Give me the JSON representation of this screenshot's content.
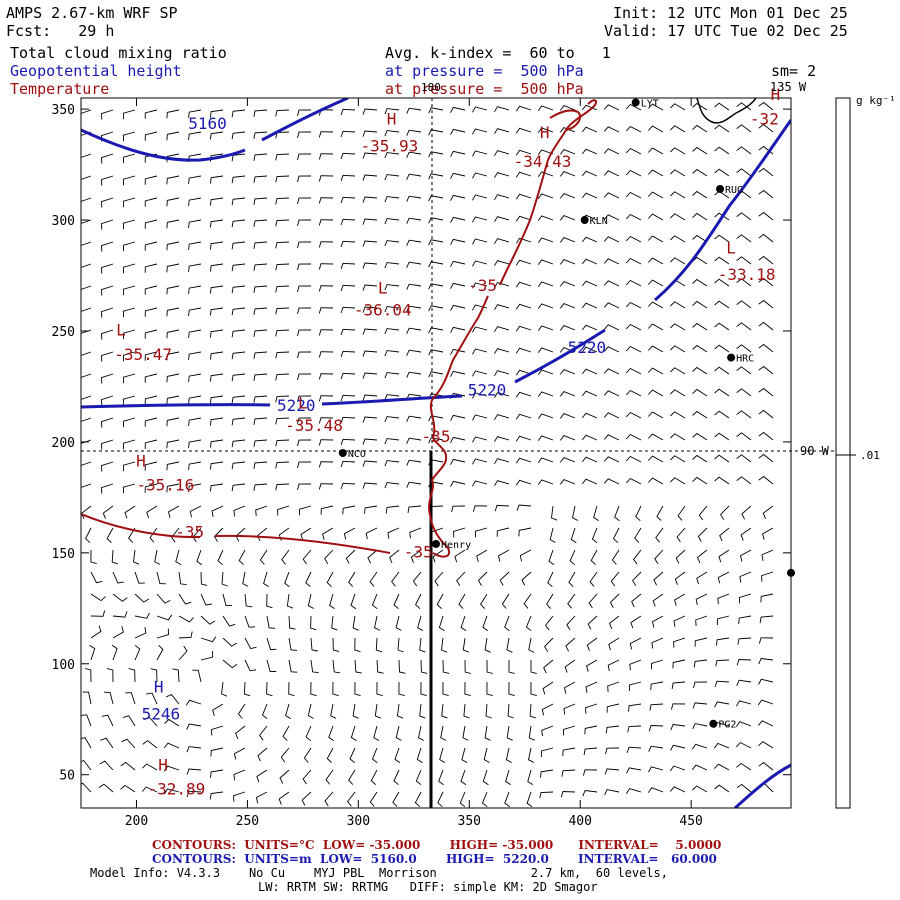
{
  "header": {
    "model_title": "AMPS 2.67-km WRF SP",
    "forecast": "Fcst:   29 h",
    "init": "Init: 12 UTC Mon 01 Dec 25",
    "valid": "Valid: 17 UTC Tue 02 Dec 25",
    "field_cloud": "Total cloud mixing ratio",
    "field_height": "Geopotential height",
    "field_temp": "Temperature",
    "avg_k": "Avg. k-index =  60 to   1",
    "pressure_height": "at pressure =  500 hPa",
    "pressure_temp": "at pressure =  500 hPa",
    "smoothing": "sm= 2",
    "lon_top": "135 W",
    "lon_top_short": "180",
    "lon_right": "90 W"
  },
  "colorbar": {
    "units": "g kg⁻¹",
    "value": ".01"
  },
  "axes": {
    "x_ticks": [
      "200",
      "250",
      "300",
      "350",
      "400",
      "450"
    ],
    "y_ticks": [
      "350",
      "300",
      "250",
      "200",
      "150",
      "100",
      "50"
    ],
    "x_range": [
      175,
      495
    ],
    "y_range": [
      35,
      355
    ]
  },
  "stations": [
    {
      "name": "LYT",
      "x": 425,
      "y": 353
    },
    {
      "name": "RUG",
      "x": 463,
      "y": 314
    },
    {
      "name": "KLN",
      "x": 402,
      "y": 300
    },
    {
      "name": "HRC",
      "x": 468,
      "y": 238
    },
    {
      "name": "NCO",
      "x": 293,
      "y": 195
    },
    {
      "name": "Henry",
      "x": 335,
      "y": 154
    },
    {
      "name": "PG2",
      "x": 460,
      "y": 73
    },
    {
      "name": "",
      "x": 495,
      "y": 141
    }
  ],
  "labels_height": [
    {
      "text": "5160",
      "x": 232,
      "y": 341
    },
    {
      "text": "5220",
      "x": 403,
      "y": 240
    },
    {
      "text": "5220",
      "x": 358,
      "y": 221
    },
    {
      "text": "5220",
      "x": 272,
      "y": 214
    },
    {
      "text": "5246",
      "x": 211,
      "y": 75
    }
  ],
  "labels_temp": [
    {
      "text": "-35.93",
      "x": 314,
      "y": 331
    },
    {
      "text": "-34.43",
      "x": 383,
      "y": 324
    },
    {
      "text": "-33.18",
      "x": 475,
      "y": 273
    },
    {
      "text": "-35",
      "x": 356,
      "y": 268
    },
    {
      "text": "-36.04",
      "x": 311,
      "y": 257
    },
    {
      "text": "-35.47",
      "x": 203,
      "y": 237
    },
    {
      "text": "-35.48",
      "x": 280,
      "y": 205
    },
    {
      "text": "-35",
      "x": 335,
      "y": 200
    },
    {
      "text": "-35.16",
      "x": 213,
      "y": 178
    },
    {
      "text": "-35",
      "x": 224,
      "y": 157
    },
    {
      "text": "-35",
      "x": 327,
      "y": 148
    },
    {
      "text": "-32.89",
      "x": 218,
      "y": 41
    },
    {
      "text": "-32",
      "x": 483,
      "y": 343
    }
  ],
  "extrema": [
    {
      "text": "H",
      "type": "temp",
      "x": 315,
      "y": 343
    },
    {
      "text": "H",
      "type": "temp",
      "x": 384,
      "y": 337
    },
    {
      "text": "L",
      "type": "temp",
      "x": 468,
      "y": 285
    },
    {
      "text": "L",
      "type": "temp",
      "x": 311,
      "y": 267
    },
    {
      "text": "L",
      "type": "temp",
      "x": 193,
      "y": 248
    },
    {
      "text": "L",
      "type": "temp",
      "x": 275,
      "y": 215
    },
    {
      "text": "H",
      "type": "temp",
      "x": 202,
      "y": 189
    },
    {
      "text": "H",
      "type": "temp",
      "x": 212,
      "y": 52
    },
    {
      "text": "H",
      "type": "temp",
      "x": 488,
      "y": 354
    },
    {
      "text": "H",
      "type": "height",
      "x": 210,
      "y": 87
    }
  ],
  "contour_info": {
    "temp_line": "CONTOURS:  UNITS=°C  LOW= -35.000       HIGH= -35.000      INTERVAL=    5.0000",
    "height_line": "CONTOURS:  UNITS=m  LOW=  5160.0       HIGH=  5220.0       INTERVAL=   60.000"
  },
  "footer": {
    "model_info": "Model Info: V4.3.3    No Cu    MYJ PBL  Morrison             2.7 km,  60 levels,",
    "physics": "LW: RRTM SW: RRTMG   DIFF: simple KM: 2D Smagor"
  },
  "colors": {
    "height_contour": "#1a1ab0",
    "temp_contour": "#a01010",
    "wind_barb": "#000000"
  }
}
